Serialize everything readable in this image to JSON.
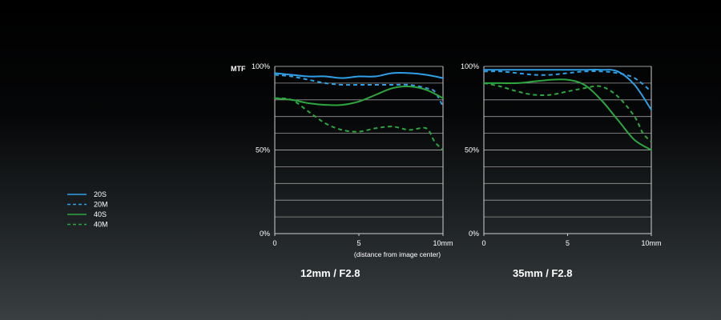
{
  "colors": {
    "blue": "#2f9fe6",
    "green": "#2ea640",
    "grid": "#9a9a9a"
  },
  "yaxis_label": "MTF",
  "y_tick_labels": [
    "100%",
    "50%",
    "0%"
  ],
  "x_note": "(distance from image center)",
  "legend": [
    {
      "label": "20S",
      "color": "#2f9fe6",
      "dashed": false
    },
    {
      "label": "20M",
      "color": "#2f9fe6",
      "dashed": true
    },
    {
      "label": "40S",
      "color": "#2ea640",
      "dashed": false
    },
    {
      "label": "40M",
      "color": "#2ea640",
      "dashed": true
    }
  ],
  "chart_data": [
    {
      "type": "line",
      "title": "12mm / F2.8",
      "x_tick_labels": [
        "0",
        "5",
        "10mm"
      ],
      "xlim": [
        0,
        10
      ],
      "ylim": [
        0,
        100
      ],
      "y_ticks": [
        0,
        50,
        100
      ],
      "grid": true,
      "series": [
        {
          "name": "20S",
          "x": [
            0,
            1,
            2,
            3,
            4,
            5,
            6,
            7,
            8,
            9,
            10
          ],
          "y": [
            96,
            95,
            94,
            94,
            93,
            94,
            94,
            96,
            96,
            95,
            93
          ]
        },
        {
          "name": "20M",
          "x": [
            0,
            1,
            2,
            3,
            4,
            5,
            6,
            7,
            8,
            9,
            9.5,
            10
          ],
          "y": [
            95,
            94,
            92,
            90,
            89,
            89,
            89,
            89,
            89,
            87,
            85,
            76
          ]
        },
        {
          "name": "40S",
          "x": [
            0,
            1,
            2,
            3,
            4,
            5,
            6,
            7,
            8,
            9,
            10
          ],
          "y": [
            81,
            80,
            78,
            77,
            77,
            79,
            83,
            87,
            88,
            86,
            81
          ]
        },
        {
          "name": "40M",
          "x": [
            0,
            1,
            2,
            3,
            4,
            5,
            6,
            7,
            8,
            9,
            9.5,
            10
          ],
          "y": [
            81,
            80,
            73,
            66,
            62,
            61,
            63,
            64,
            62,
            63,
            55,
            50
          ]
        }
      ]
    },
    {
      "type": "line",
      "title": "35mm / F2.8",
      "x_tick_labels": [
        "0",
        "5",
        "10mm"
      ],
      "xlim": [
        0,
        10
      ],
      "ylim": [
        0,
        100
      ],
      "y_ticks": [
        0,
        50,
        100
      ],
      "grid": true,
      "series": [
        {
          "name": "20S",
          "x": [
            0,
            1,
            2,
            3,
            4,
            5,
            6,
            7,
            8,
            9,
            10
          ],
          "y": [
            98,
            98,
            98,
            98,
            98,
            98,
            98,
            98,
            97,
            89,
            74
          ]
        },
        {
          "name": "20M",
          "x": [
            0,
            1,
            2,
            3,
            4,
            5,
            6,
            7,
            8,
            9,
            10
          ],
          "y": [
            97,
            97,
            96,
            95,
            95,
            96,
            97,
            97,
            96,
            93,
            85
          ]
        },
        {
          "name": "40S",
          "x": [
            0,
            1,
            2,
            3,
            4,
            5,
            6,
            7,
            8,
            9,
            10
          ],
          "y": [
            90,
            90,
            90,
            91,
            92,
            92,
            89,
            80,
            68,
            56,
            50
          ]
        },
        {
          "name": "40M",
          "x": [
            0,
            1,
            2,
            3,
            4,
            5,
            6,
            7,
            8,
            9,
            9.5,
            10
          ],
          "y": [
            90,
            88,
            85,
            83,
            83,
            85,
            87,
            88,
            82,
            70,
            60,
            55
          ]
        }
      ]
    }
  ]
}
